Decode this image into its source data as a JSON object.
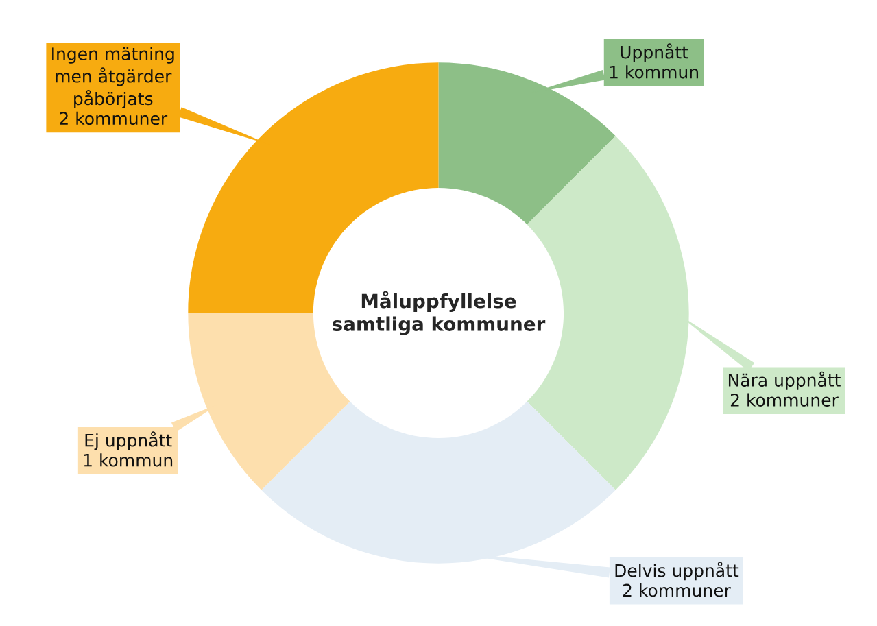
{
  "chart_data": {
    "type": "donut",
    "title": "Måluppfyllelse\nsamtliga kommuner",
    "categories": [
      "Uppnått",
      "Nära uppnått",
      "Delvis uppnått",
      "Ej uppnått",
      "Ingen mätning\nmen åtgärder\npåbörjats"
    ],
    "values": [
      1,
      2,
      2,
      1,
      2
    ],
    "value_labels": [
      "1 kommun",
      "2 kommuner",
      "2 kommuner",
      "1 kommun",
      "2 kommuner"
    ],
    "colors": [
      "#8dbf87",
      "#cde9c8",
      "#e4edf5",
      "#fddfad",
      "#f7ab10"
    ]
  }
}
